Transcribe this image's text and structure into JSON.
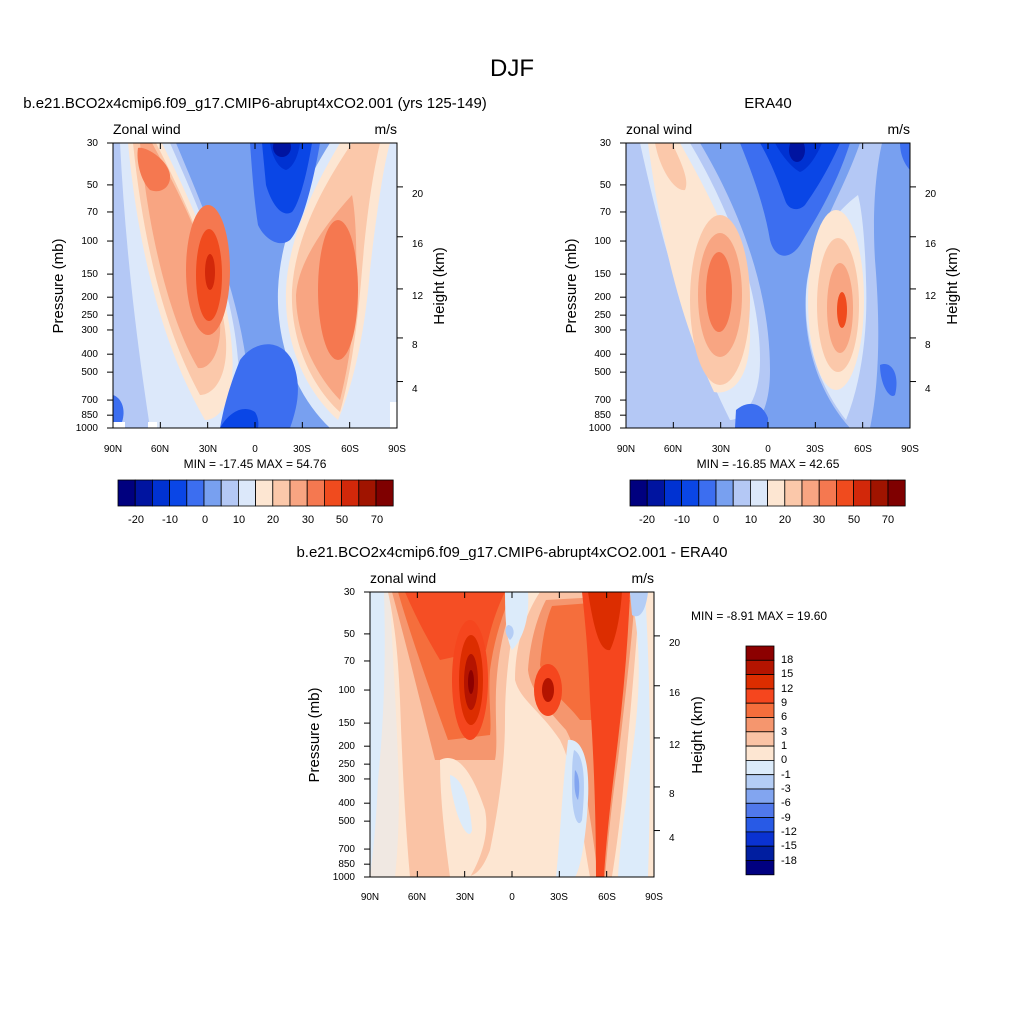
{
  "figure": {
    "title": "DJF"
  },
  "chart_data": [
    {
      "type": "heatmap",
      "title": "b.e21.BCO2x4cmip6.f09_g17.CMIP6-abrupt4xCO2.001 (yrs 125-149)",
      "left_string": "Zonal wind",
      "right_string": "m/s",
      "ylabel": "Pressure (mb)",
      "ylabel_right": "Height (km)",
      "x_ticks": [
        "90N",
        "60N",
        "30N",
        "0",
        "30S",
        "60S",
        "90S"
      ],
      "y_ticks": [
        30,
        50,
        70,
        100,
        150,
        200,
        250,
        300,
        400,
        500,
        700,
        850,
        1000
      ],
      "y_right_ticks": [
        4,
        8,
        12,
        16,
        20
      ],
      "stats": "MIN = -17.45  MAX =  54.76",
      "colorbar": {
        "labels": [
          "-20",
          "-10",
          "0",
          "10",
          "20",
          "30",
          "50",
          "70"
        ]
      }
    },
    {
      "type": "heatmap",
      "title": "ERA40",
      "left_string": "zonal wind",
      "right_string": "m/s",
      "ylabel": "Pressure (mb)",
      "ylabel_right": "Height (km)",
      "x_ticks": [
        "90N",
        "60N",
        "30N",
        "0",
        "30S",
        "60S",
        "90S"
      ],
      "y_ticks": [
        30,
        50,
        70,
        100,
        150,
        200,
        250,
        300,
        400,
        500,
        700,
        850,
        1000
      ],
      "y_right_ticks": [
        4,
        8,
        12,
        16,
        20
      ],
      "stats": "MIN = -16.85  MAX =  42.65",
      "colorbar": {
        "labels": [
          "-20",
          "-10",
          "0",
          "10",
          "20",
          "30",
          "50",
          "70"
        ]
      }
    },
    {
      "type": "heatmap",
      "title": "b.e21.BCO2x4cmip6.f09_g17.CMIP6-abrupt4xCO2.001 - ERA40",
      "left_string": "zonal wind",
      "right_string": "m/s",
      "ylabel": "Pressure (mb)",
      "ylabel_right": "Height (km)",
      "x_ticks": [
        "90N",
        "60N",
        "30N",
        "0",
        "30S",
        "60S",
        "90S"
      ],
      "y_ticks": [
        30,
        50,
        70,
        100,
        150,
        200,
        250,
        300,
        400,
        500,
        700,
        850,
        1000
      ],
      "y_right_ticks": [
        4,
        8,
        12,
        16,
        20
      ],
      "stats": "MIN =  -8.91  MAX =  19.60",
      "colorbar": {
        "labels": [
          "18",
          "15",
          "12",
          "9",
          "6",
          "3",
          "1",
          "0",
          "-1",
          "-3",
          "-6",
          "-9",
          "-12",
          "-15",
          "-18"
        ]
      }
    }
  ],
  "palettes": {
    "cb1": [
      "#00007f",
      "#0014a0",
      "#0032d2",
      "#0a46e6",
      "#3c6ef0",
      "#78a0f0",
      "#b4c8f5",
      "#dce8fa",
      "#fde6d2",
      "#fbc8aa",
      "#f8a582",
      "#f57850",
      "#f04b1e",
      "#d2280a",
      "#a01400",
      "#7f0000"
    ],
    "cb3": [
      "#8c0000",
      "#b41400",
      "#dc2d00",
      "#f5461e",
      "#f56e3c",
      "#f5966e",
      "#fac3a5",
      "#fde6d2",
      "#dcebfa",
      "#b4cdf5",
      "#82a5f0",
      "#5078eb",
      "#285ae6",
      "#0a32d2",
      "#001ea0",
      "#000080"
    ]
  }
}
